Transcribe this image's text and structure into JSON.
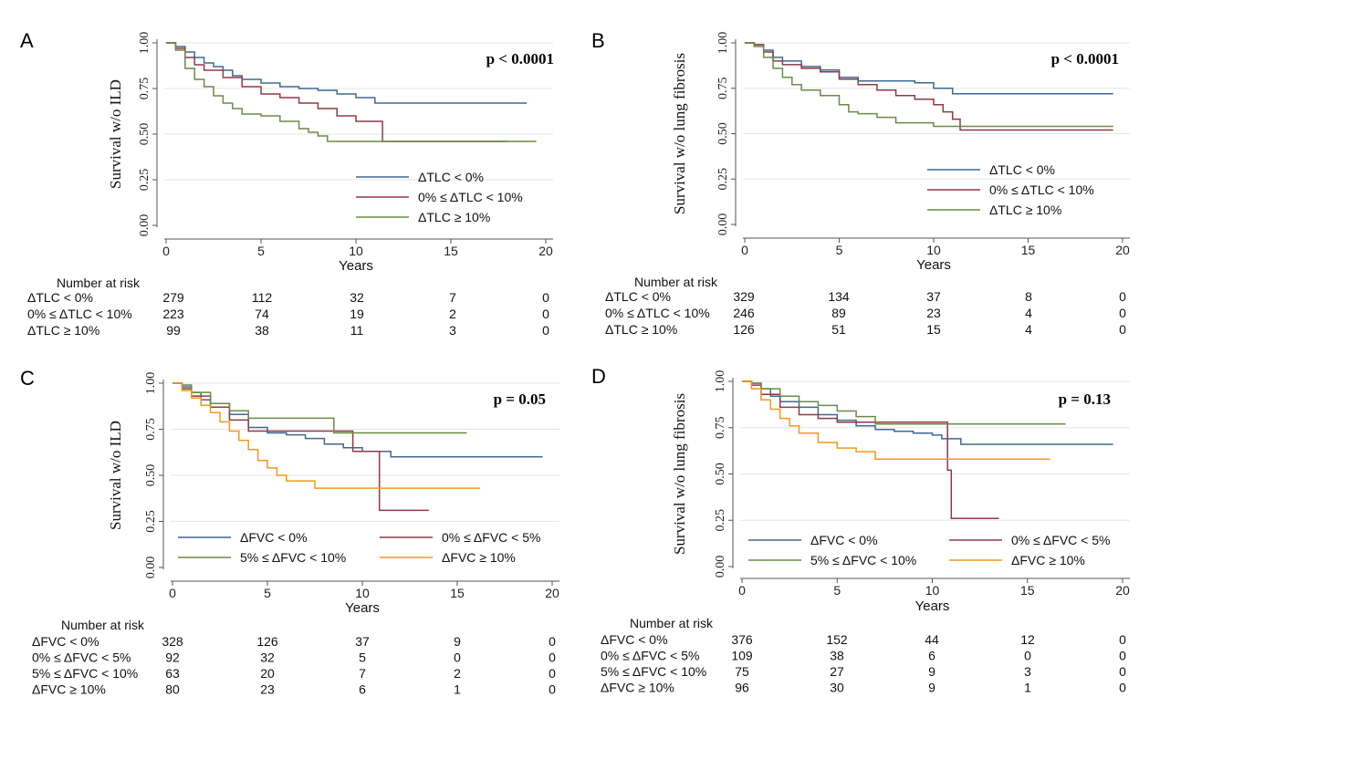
{
  "colors": {
    "blue": "#3e6892",
    "red": "#8f3a45",
    "green": "#6a8c45",
    "orange": "#f09a1e",
    "axis": "#555555",
    "grid": "#e6e6e6"
  },
  "chart_data": [
    {
      "panel": "A",
      "type": "line",
      "step": true,
      "ylabel": "Survival w/o ILD",
      "xlabel": "Years",
      "pvalue": "p < 0.0001",
      "xlim": [
        0,
        20
      ],
      "ylim": [
        0,
        1
      ],
      "xticks": [
        "0",
        "5",
        "10",
        "15",
        "20"
      ],
      "yticks": [
        "0.00",
        "0.25",
        "0.50",
        "0.75",
        "1.00"
      ],
      "legend_position": "center-right",
      "series": [
        {
          "name": "ΔTLC < 0%",
          "color": "#3e6892",
          "x": [
            0,
            0.5,
            1,
            1.5,
            2,
            2.5,
            3,
            3.5,
            4,
            5,
            6,
            7,
            8,
            9,
            10,
            11,
            19
          ],
          "y": [
            1,
            0.98,
            0.95,
            0.92,
            0.89,
            0.87,
            0.85,
            0.82,
            0.8,
            0.78,
            0.76,
            0.75,
            0.74,
            0.72,
            0.7,
            0.67,
            0.67
          ]
        },
        {
          "name": "0% ≤ ΔTLC < 10%",
          "color": "#8f3a45",
          "x": [
            0,
            0.5,
            1,
            1.5,
            2,
            3,
            4,
            5,
            6,
            7,
            8,
            9,
            10,
            11.4,
            18
          ],
          "y": [
            1,
            0.97,
            0.92,
            0.88,
            0.85,
            0.81,
            0.76,
            0.72,
            0.7,
            0.67,
            0.64,
            0.6,
            0.57,
            0.46,
            0.46
          ]
        },
        {
          "name": "ΔTLC ≥ 10%",
          "color": "#6a8c45",
          "x": [
            0,
            0.5,
            1,
            1.5,
            2,
            2.5,
            3,
            3.5,
            4,
            5,
            6,
            7,
            7.5,
            8,
            8.5,
            19.5
          ],
          "y": [
            1,
            0.96,
            0.86,
            0.8,
            0.76,
            0.71,
            0.67,
            0.64,
            0.61,
            0.6,
            0.57,
            0.53,
            0.51,
            0.49,
            0.46,
            0.46
          ]
        }
      ],
      "risk_table": {
        "header": "Number at risk",
        "times": [
          0,
          5,
          10,
          15,
          20
        ],
        "rows": [
          {
            "label": "ΔTLC < 0%",
            "values": [
              "279",
              "112",
              "32",
              "7",
              "0"
            ]
          },
          {
            "label": "0% ≤ ΔTLC < 10%",
            "values": [
              "223",
              "74",
              "19",
              "2",
              "0"
            ]
          },
          {
            "label": "ΔTLC ≥ 10%",
            "values": [
              "99",
              "38",
              "11",
              "3",
              "0"
            ]
          }
        ]
      }
    },
    {
      "panel": "B",
      "type": "line",
      "step": true,
      "ylabel": "Survival w/o lung fibrosis",
      "xlabel": "Years",
      "pvalue": "p < 0.0001",
      "xlim": [
        0,
        20
      ],
      "ylim": [
        0,
        1
      ],
      "xticks": [
        "0",
        "5",
        "10",
        "15",
        "20"
      ],
      "yticks": [
        "0.00",
        "0.25",
        "0.50",
        "0.75",
        "1.00"
      ],
      "legend_position": "center-right",
      "series": [
        {
          "name": "ΔTLC < 0%",
          "color": "#3e6892",
          "x": [
            0,
            0.5,
            1,
            1.5,
            2,
            3,
            4,
            5,
            6,
            8,
            9,
            10,
            11,
            19.5
          ],
          "y": [
            1,
            0.99,
            0.96,
            0.92,
            0.9,
            0.87,
            0.85,
            0.81,
            0.79,
            0.79,
            0.78,
            0.75,
            0.72,
            0.72
          ]
        },
        {
          "name": "0% ≤ ΔTLC < 10%",
          "color": "#8f3a45",
          "x": [
            0,
            0.5,
            1,
            1.5,
            2,
            3,
            4,
            5,
            6,
            7,
            8,
            9,
            10,
            10.5,
            11,
            11.4,
            19.5
          ],
          "y": [
            1,
            0.99,
            0.95,
            0.9,
            0.88,
            0.86,
            0.84,
            0.8,
            0.77,
            0.74,
            0.71,
            0.69,
            0.66,
            0.62,
            0.58,
            0.52,
            0.52
          ]
        },
        {
          "name": "ΔTLC ≥ 10%",
          "color": "#6a8c45",
          "x": [
            0,
            0.5,
            1,
            1.5,
            2,
            2.5,
            3,
            4,
            5,
            5.5,
            6,
            7,
            8,
            10,
            11,
            19.5
          ],
          "y": [
            1,
            0.98,
            0.92,
            0.86,
            0.81,
            0.77,
            0.74,
            0.71,
            0.66,
            0.62,
            0.61,
            0.59,
            0.56,
            0.54,
            0.54,
            0.54
          ]
        }
      ],
      "risk_table": {
        "header": "Number at risk",
        "times": [
          0,
          5,
          10,
          15,
          20
        ],
        "rows": [
          {
            "label": "ΔTLC < 0%",
            "values": [
              "329",
              "134",
              "37",
              "8",
              "0"
            ]
          },
          {
            "label": "0% ≤ ΔTLC < 10%",
            "values": [
              "246",
              "89",
              "23",
              "4",
              "0"
            ]
          },
          {
            "label": "ΔTLC ≥ 10%",
            "values": [
              "126",
              "51",
              "15",
              "4",
              "0"
            ]
          }
        ]
      }
    },
    {
      "panel": "C",
      "type": "line",
      "step": true,
      "ylabel": "Survival w/o ILD",
      "xlabel": "Years",
      "pvalue": "p = 0.05",
      "xlim": [
        0,
        20
      ],
      "ylim": [
        0,
        1
      ],
      "xticks": [
        "0",
        "5",
        "10",
        "15",
        "20"
      ],
      "yticks": [
        "0.00",
        "0.25",
        "0.50",
        "0.75",
        "1.00"
      ],
      "legend_position": "bottom",
      "series": [
        {
          "name": "ΔFVC < 0%",
          "color": "#3e6892",
          "x": [
            0,
            0.5,
            1,
            1.5,
            2,
            3,
            4,
            5,
            6,
            7,
            8,
            9,
            10,
            11.5,
            19.5
          ],
          "y": [
            1,
            0.98,
            0.95,
            0.91,
            0.89,
            0.83,
            0.76,
            0.73,
            0.72,
            0.7,
            0.67,
            0.65,
            0.63,
            0.6,
            0.6
          ]
        },
        {
          "name": "0% ≤ ΔFVC < 5%",
          "color": "#8f3a45",
          "x": [
            0,
            0.5,
            1,
            2,
            3,
            4,
            5,
            9.5,
            10.5,
            10.9,
            13.5
          ],
          "y": [
            1,
            0.97,
            0.93,
            0.87,
            0.8,
            0.74,
            0.74,
            0.63,
            0.63,
            0.31,
            0.31
          ]
        },
        {
          "name": "5% ≤ ΔFVC < 10%",
          "color": "#6a8c45",
          "x": [
            0,
            0.5,
            1,
            2,
            3,
            4,
            8.5,
            15.5
          ],
          "y": [
            1,
            0.99,
            0.95,
            0.89,
            0.85,
            0.81,
            0.73,
            0.73
          ]
        },
        {
          "name": "ΔFVC ≥ 10%",
          "color": "#f09a1e",
          "x": [
            0,
            0.5,
            1,
            1.5,
            2,
            2.5,
            3,
            3.5,
            4,
            4.5,
            5,
            5.5,
            6,
            7.5,
            16.2
          ],
          "y": [
            1,
            0.96,
            0.92,
            0.88,
            0.84,
            0.79,
            0.74,
            0.69,
            0.64,
            0.58,
            0.54,
            0.5,
            0.47,
            0.43,
            0.43
          ]
        }
      ],
      "risk_table": {
        "header": "Number at risk",
        "times": [
          0,
          5,
          10,
          15,
          20
        ],
        "rows": [
          {
            "label": "ΔFVC < 0%",
            "values": [
              "328",
              "126",
              "37",
              "9",
              "0"
            ]
          },
          {
            "label": "0% ≤ ΔFVC < 5%",
            "values": [
              "92",
              "32",
              "5",
              "0",
              "0"
            ]
          },
          {
            "label": "5% ≤ ΔFVC < 10%",
            "values": [
              "63",
              "20",
              "7",
              "2",
              "0"
            ]
          },
          {
            "label": "ΔFVC ≥ 10%",
            "values": [
              "80",
              "23",
              "6",
              "1",
              "0"
            ]
          }
        ]
      }
    },
    {
      "panel": "D",
      "type": "line",
      "step": true,
      "ylabel": "Survival w/o lung fibrosis",
      "xlabel": "Years",
      "pvalue": "p = 0.13",
      "xlim": [
        0,
        20
      ],
      "ylim": [
        0,
        1
      ],
      "xticks": [
        "0",
        "5",
        "10",
        "15",
        "20"
      ],
      "yticks": [
        "0.00",
        "0.25",
        "0.50",
        "0.75",
        "1.00"
      ],
      "legend_position": "bottom",
      "series": [
        {
          "name": "ΔFVC < 0%",
          "color": "#3e6892",
          "x": [
            0,
            0.5,
            1,
            1.5,
            2,
            3,
            4,
            5,
            6,
            7,
            8,
            9,
            10,
            10.5,
            11.5,
            19.5
          ],
          "y": [
            1,
            0.99,
            0.96,
            0.92,
            0.89,
            0.86,
            0.82,
            0.79,
            0.76,
            0.74,
            0.73,
            0.72,
            0.71,
            0.69,
            0.66,
            0.66
          ]
        },
        {
          "name": "0% ≤ ΔFVC < 5%",
          "color": "#8f3a45",
          "x": [
            0,
            0.5,
            1,
            2,
            3,
            4,
            5,
            10.8,
            11,
            13.5
          ],
          "y": [
            1,
            0.98,
            0.93,
            0.86,
            0.82,
            0.8,
            0.78,
            0.52,
            0.26,
            0.26
          ]
        },
        {
          "name": "5% ≤ ΔFVC < 10%",
          "color": "#6a8c45",
          "x": [
            0,
            0.5,
            1,
            2,
            3,
            4,
            5,
            6,
            7,
            17
          ],
          "y": [
            1,
            0.99,
            0.96,
            0.92,
            0.89,
            0.87,
            0.84,
            0.81,
            0.77,
            0.77
          ]
        },
        {
          "name": "ΔFVC ≥ 10%",
          "color": "#f09a1e",
          "x": [
            0,
            0.5,
            1,
            1.5,
            2,
            2.5,
            3,
            4,
            5,
            6,
            7,
            16.2
          ],
          "y": [
            1,
            0.96,
            0.9,
            0.85,
            0.8,
            0.76,
            0.72,
            0.67,
            0.64,
            0.62,
            0.58,
            0.58
          ]
        }
      ],
      "risk_table": {
        "header": "Number at risk",
        "times": [
          0,
          5,
          10,
          15,
          20
        ],
        "rows": [
          {
            "label": "ΔFVC < 0%",
            "values": [
              "376",
              "152",
              "44",
              "12",
              "0"
            ]
          },
          {
            "label": "0% ≤ ΔFVC < 5%",
            "values": [
              "109",
              "38",
              "6",
              "0",
              "0"
            ]
          },
          {
            "label": "5% ≤ ΔFVC < 10%",
            "values": [
              "75",
              "27",
              "9",
              "3",
              "0"
            ]
          },
          {
            "label": "ΔFVC ≥ 10%",
            "values": [
              "96",
              "30",
              "9",
              "1",
              "0"
            ]
          }
        ]
      }
    }
  ]
}
